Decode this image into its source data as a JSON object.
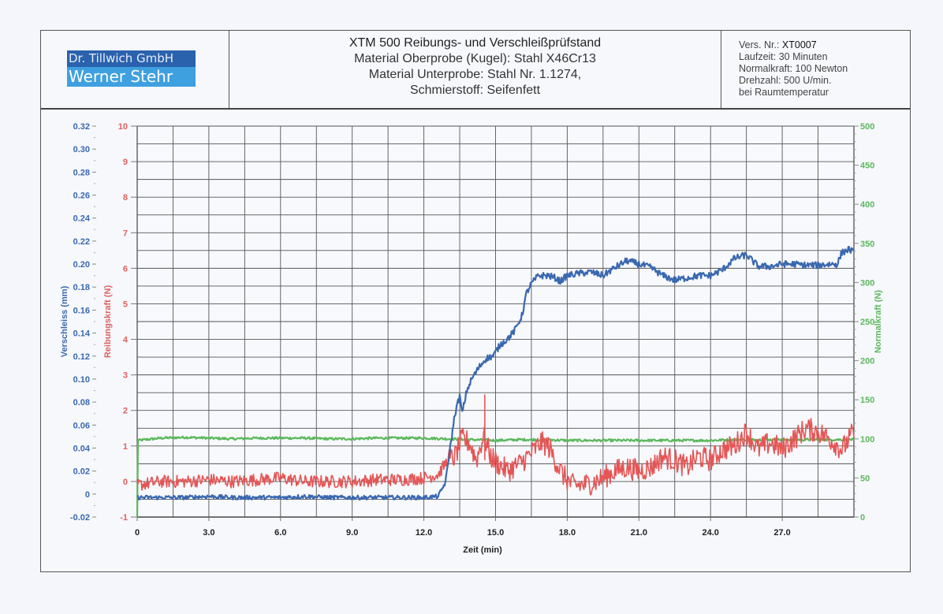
{
  "header": {
    "logo": {
      "company": "Dr. Tillwich GmbH",
      "name": "Werner Stehr"
    },
    "title_lines": [
      "XTM 500 Reibungs- und Verschleißprüfstand",
      "Material Oberprobe (Kugel): Stahl X46Cr13",
      "Material Unterprobe: Stahl Nr. 1.1274,",
      "Schmierstoff: Seifenfett"
    ],
    "info": {
      "vers_label": "Vers. Nr.:",
      "vers_value": "XT0007",
      "lines": [
        "Laufzeit: 30 Minuten",
        "Normalkraft: 100 Newton",
        "Drehzahl: 500 U/min.",
        "bei Raumtemperatur"
      ]
    }
  },
  "colors": {
    "verschleiss": "#3a68b0",
    "reibungskraft": "#e55555",
    "normalkraft": "#5cb85c",
    "grid": "#555555"
  },
  "chart_data": {
    "type": "line",
    "title": "XTM 500 Reibungs- und Verschleißprüfstand",
    "xlabel": "Zeit (min)",
    "xlim": [
      0,
      30
    ],
    "x_ticks": [
      "0",
      "3.0",
      "6.0",
      "9.0",
      "12.0",
      "15.0",
      "18.0",
      "21.0",
      "24.0",
      "27.0"
    ],
    "x_tick_values": [
      0,
      3,
      6,
      9,
      12,
      15,
      18,
      21,
      24,
      27
    ],
    "grid": true,
    "axes": [
      {
        "id": "verschleiss",
        "label": "Verschleiss (mm)",
        "side": "left-outer",
        "ylim": [
          -0.02,
          0.32
        ],
        "ticks": [
          "0.32",
          "0.30",
          "0.28",
          "0.26",
          "0.24",
          "0.22",
          "0.20",
          "0.18",
          "0.16",
          "0.14",
          "0.12",
          "0.10",
          "0.08",
          "0.06",
          "0.04",
          "0.02",
          "0",
          "-0.02"
        ],
        "tick_values": [
          0.32,
          0.3,
          0.28,
          0.26,
          0.24,
          0.22,
          0.2,
          0.18,
          0.16,
          0.14,
          0.12,
          0.1,
          0.08,
          0.06,
          0.04,
          0.02,
          0,
          -0.02
        ]
      },
      {
        "id": "reibungskraft",
        "label": "Reibungskraft (N)",
        "side": "left-inner",
        "ylim": [
          -1,
          10
        ],
        "ticks": [
          "10",
          "9",
          "8",
          "7",
          "6",
          "5",
          "4",
          "3",
          "2",
          "1",
          "0",
          "-1"
        ],
        "tick_values": [
          10,
          9,
          8,
          7,
          6,
          5,
          4,
          3,
          2,
          1,
          0,
          -1
        ]
      },
      {
        "id": "normalkraft",
        "label": "Normalkraft (N)",
        "side": "right",
        "ylim": [
          0,
          500
        ],
        "ticks": [
          "500",
          "450",
          "400",
          "350",
          "300",
          "250",
          "200",
          "150",
          "100",
          "50",
          "0"
        ],
        "tick_values": [
          500,
          450,
          400,
          350,
          300,
          250,
          200,
          150,
          100,
          50,
          0
        ]
      }
    ],
    "series": [
      {
        "name": "Verschleiss (mm)",
        "axis": "verschleiss",
        "x": [
          0,
          1,
          2,
          3,
          4,
          5,
          6,
          7,
          8,
          9,
          10,
          11,
          12,
          12.6,
          12.9,
          13.1,
          13.3,
          13.5,
          13.6,
          13.8,
          14.0,
          14.3,
          14.6,
          14.9,
          15.2,
          15.5,
          15.8,
          16.1,
          16.3,
          16.5,
          16.8,
          17.2,
          17.5,
          17.7,
          18.0,
          18.5,
          19.0,
          19.5,
          20.0,
          20.5,
          21.0,
          21.5,
          22.0,
          22.5,
          23.0,
          23.5,
          24.0,
          24.5,
          25.0,
          25.5,
          26.0,
          26.5,
          27.0,
          27.5,
          28.0,
          28.5,
          29.0,
          29.3,
          29.5,
          29.8,
          30.0
        ],
        "values": [
          -0.003,
          -0.003,
          -0.003,
          -0.002,
          -0.003,
          -0.003,
          -0.003,
          -0.002,
          -0.003,
          -0.003,
          -0.003,
          -0.003,
          -0.003,
          -0.002,
          0.01,
          0.04,
          0.07,
          0.085,
          0.07,
          0.09,
          0.1,
          0.11,
          0.118,
          0.12,
          0.13,
          0.135,
          0.142,
          0.155,
          0.175,
          0.183,
          0.19,
          0.19,
          0.188,
          0.185,
          0.19,
          0.192,
          0.193,
          0.19,
          0.197,
          0.203,
          0.2,
          0.197,
          0.19,
          0.186,
          0.188,
          0.19,
          0.19,
          0.195,
          0.205,
          0.208,
          0.198,
          0.198,
          0.2,
          0.2,
          0.199,
          0.199,
          0.2,
          0.2,
          0.21,
          0.213,
          0.21
        ]
      },
      {
        "name": "Reibungskraft (N)",
        "axis": "reibungskraft",
        "x": [
          0,
          1,
          2,
          3,
          4,
          5,
          6,
          7,
          8,
          9,
          10,
          11,
          12,
          12.6,
          13.0,
          13.3,
          13.6,
          13.9,
          14.2,
          14.5,
          14.8,
          15.1,
          15.5,
          16.0,
          16.5,
          16.9,
          17.2,
          17.5,
          17.8,
          18.2,
          18.6,
          19.0,
          19.5,
          20.0,
          20.5,
          21.0,
          21.5,
          22.0,
          22.5,
          23.0,
          23.5,
          24.0,
          24.5,
          25.0,
          25.5,
          26.0,
          26.5,
          27.0,
          27.5,
          28.0,
          28.5,
          29.0,
          29.5,
          30.0
        ],
        "values": [
          -0.1,
          0,
          0,
          0.05,
          0,
          0.05,
          0.1,
          0,
          0,
          0,
          0.05,
          0.05,
          0.1,
          0.2,
          0.6,
          0.7,
          1.2,
          1.1,
          0.6,
          1.3,
          0.7,
          0.5,
          0.3,
          0.5,
          0.8,
          1.1,
          1.0,
          0.6,
          0.2,
          -0.1,
          -0.1,
          -0.05,
          0.1,
          0.3,
          0.4,
          0.3,
          0.4,
          0.7,
          0.6,
          0.4,
          0.7,
          0.6,
          0.9,
          1.0,
          1.4,
          0.9,
          1.1,
          0.9,
          1.2,
          1.5,
          1.4,
          1.2,
          0.9,
          1.4
        ]
      },
      {
        "name": "Normalkraft (N)",
        "axis": "normalkraft",
        "x": [
          0,
          0.01,
          1,
          2,
          3,
          4,
          5,
          6,
          7,
          8,
          9,
          10,
          11,
          12,
          13,
          14,
          15,
          16,
          17,
          18,
          19,
          20,
          21,
          22,
          23,
          24,
          25,
          26,
          27,
          28,
          29,
          30
        ],
        "values": [
          0,
          98,
          101,
          102,
          101,
          100,
          101,
          101,
          101,
          100,
          100,
          101,
          101,
          101,
          100,
          99,
          98,
          99,
          99,
          98,
          98,
          98,
          98,
          98,
          98,
          98,
          99,
          99,
          99,
          99,
          99,
          99
        ]
      }
    ]
  }
}
